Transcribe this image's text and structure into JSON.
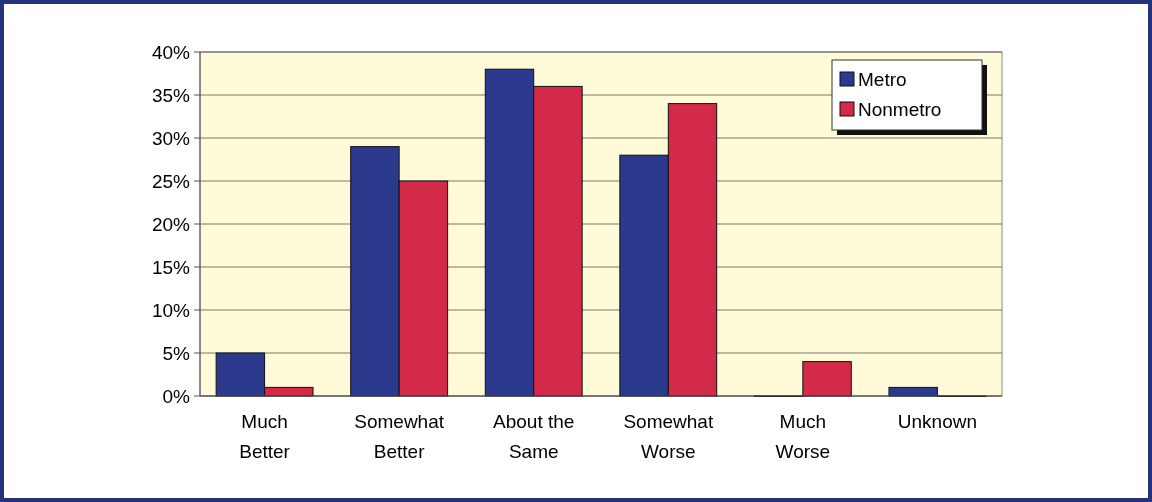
{
  "chart_data": {
    "type": "bar",
    "categories": [
      "Much Better",
      "Somewhat Better",
      "About the Same",
      "Somewhat Worse",
      "Much Worse",
      "Unknown"
    ],
    "series": [
      {
        "name": "Metro",
        "color": "#2b3a8c",
        "values": [
          5,
          29,
          38,
          28,
          0,
          1
        ]
      },
      {
        "name": "Nonmetro",
        "color": "#d42a4a",
        "values": [
          1,
          25,
          36,
          34,
          4,
          0
        ]
      }
    ],
    "ylim": [
      0,
      40
    ],
    "yticks": [
      {
        "value": 0,
        "label": "0%"
      },
      {
        "value": 5,
        "label": "5%"
      },
      {
        "value": 10,
        "label": "10%"
      },
      {
        "value": 15,
        "label": "15%"
      },
      {
        "value": 20,
        "label": "20%"
      },
      {
        "value": 25,
        "label": "25%"
      },
      {
        "value": 30,
        "label": "30%"
      },
      {
        "value": 35,
        "label": "35%"
      },
      {
        "value": 40,
        "label": "40%"
      }
    ],
    "grid": "y",
    "legend": "top right"
  }
}
